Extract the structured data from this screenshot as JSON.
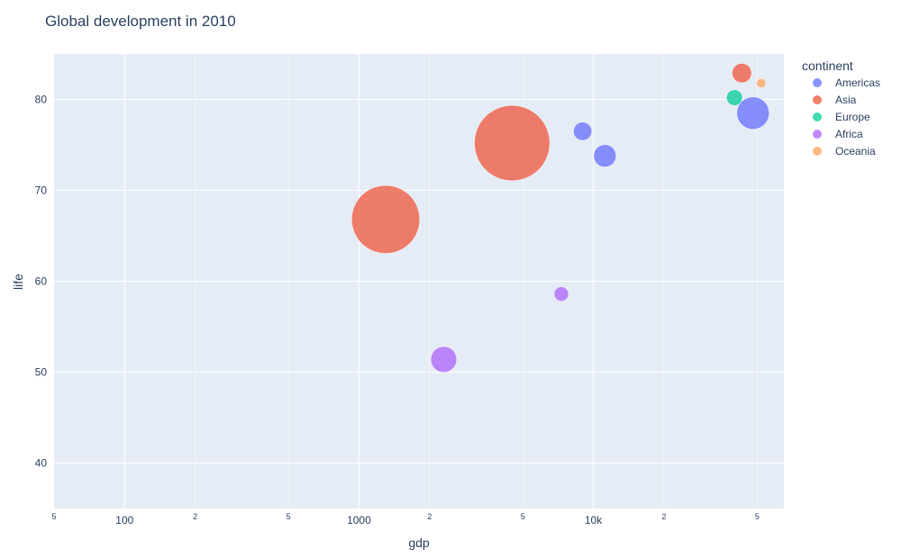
{
  "chart_data": {
    "type": "scatter",
    "title": "Global development in 2010",
    "xlabel": "gdp",
    "ylabel": "life",
    "xscale": "log",
    "xlim": [
      50,
      65000
    ],
    "ylim": [
      35,
      85
    ],
    "x_major_ticks": [
      {
        "value": 100,
        "label": "100"
      },
      {
        "value": 1000,
        "label": "1000"
      },
      {
        "value": 10000,
        "label": "10k"
      }
    ],
    "x_minor_ticks": [
      {
        "value": 50,
        "label": "5"
      },
      {
        "value": 200,
        "label": "2"
      },
      {
        "value": 500,
        "label": "5"
      },
      {
        "value": 2000,
        "label": "2"
      },
      {
        "value": 5000,
        "label": "5"
      },
      {
        "value": 20000,
        "label": "2"
      },
      {
        "value": 50000,
        "label": "5"
      }
    ],
    "y_ticks": [
      {
        "value": 40,
        "label": "40"
      },
      {
        "value": 50,
        "label": "50"
      },
      {
        "value": 60,
        "label": "60"
      },
      {
        "value": 70,
        "label": "70"
      },
      {
        "value": 80,
        "label": "80"
      }
    ],
    "grid": true,
    "legend": {
      "title": "continent",
      "placement": "right"
    },
    "series": [
      {
        "name": "Americas",
        "color": "#636efa",
        "points": [
          {
            "x": 9000,
            "y": 76.5,
            "size": 0.08
          },
          {
            "x": 11200,
            "y": 73.8,
            "size": 0.12
          },
          {
            "x": 48000,
            "y": 78.5,
            "size": 0.25
          }
        ]
      },
      {
        "name": "Asia",
        "color": "#ef553b",
        "points": [
          {
            "x": 1300,
            "y": 66.8,
            "size": 1.1
          },
          {
            "x": 4500,
            "y": 75.2,
            "size": 1.35
          },
          {
            "x": 43000,
            "y": 82.9,
            "size": 0.09
          }
        ]
      },
      {
        "name": "Europe",
        "color": "#00cc96",
        "points": [
          {
            "x": 40000,
            "y": 80.2,
            "size": 0.06
          }
        ]
      },
      {
        "name": "Africa",
        "color": "#ab63fa",
        "points": [
          {
            "x": 2300,
            "y": 51.4,
            "size": 0.16
          },
          {
            "x": 7300,
            "y": 58.6,
            "size": 0.05
          }
        ]
      },
      {
        "name": "Oceania",
        "color": "#ffa15a",
        "points": [
          {
            "x": 52000,
            "y": 81.8,
            "size": 0.02
          }
        ]
      }
    ]
  }
}
